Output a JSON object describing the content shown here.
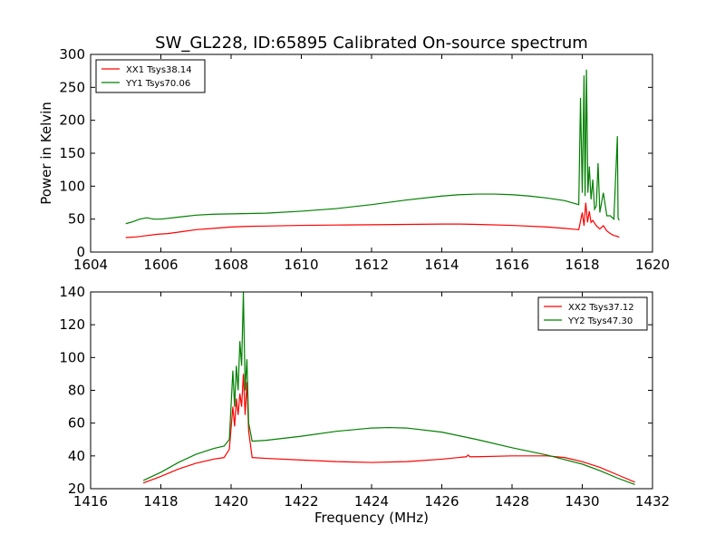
{
  "title": "SW_GL228, ID:65895 Calibrated On-source spectrum",
  "colors": {
    "red": "#ff0000",
    "green": "#008000"
  },
  "chart_data": [
    {
      "type": "line",
      "ylabel": "Power in Kelvin",
      "xlabel": "",
      "xlim": [
        1604,
        1620
      ],
      "ylim": [
        0,
        300
      ],
      "xticks": [
        "1604",
        "1606",
        "1608",
        "1610",
        "1612",
        "1614",
        "1616",
        "1618",
        "1620"
      ],
      "yticks": [
        "0",
        "50",
        "100",
        "150",
        "200",
        "250",
        "300"
      ],
      "legend": "top-left",
      "series": [
        {
          "name": "XX1 Tsys38.14",
          "color": "#ff0000",
          "x": [
            1605.0,
            1605.3,
            1605.6,
            1605.9,
            1606.2,
            1606.6,
            1607.0,
            1607.5,
            1608.0,
            1608.5,
            1609.0,
            1610.0,
            1611.0,
            1612.0,
            1613.0,
            1614.0,
            1614.5,
            1615.0,
            1616.0,
            1617.0,
            1617.5,
            1617.9,
            1618.0,
            1618.05,
            1618.1,
            1618.15,
            1618.2,
            1618.25,
            1618.3,
            1618.4,
            1618.5,
            1618.6,
            1618.7,
            1618.8,
            1618.9,
            1619.0,
            1619.05
          ],
          "y": [
            22,
            23,
            25,
            27,
            28,
            31,
            34,
            36,
            38,
            39,
            39.5,
            40.5,
            41,
            41.5,
            42,
            42.5,
            42.5,
            42,
            40.5,
            38,
            36,
            34,
            60,
            40,
            75,
            45,
            62,
            45,
            48,
            40,
            35,
            40,
            32,
            28,
            25,
            24,
            22
          ]
        },
        {
          "name": "YY1 Tsys70.06",
          "color": "#008000",
          "x": [
            1605.0,
            1605.2,
            1605.4,
            1605.6,
            1605.8,
            1606.0,
            1606.5,
            1607.0,
            1607.5,
            1608.0,
            1609.0,
            1610.0,
            1611.0,
            1612.0,
            1613.0,
            1614.0,
            1614.5,
            1615.0,
            1615.5,
            1616.0,
            1616.5,
            1617.0,
            1617.5,
            1617.9,
            1617.95,
            1618.0,
            1618.05,
            1618.08,
            1618.12,
            1618.16,
            1618.2,
            1618.25,
            1618.3,
            1618.35,
            1618.4,
            1618.45,
            1618.5,
            1618.6,
            1618.7,
            1618.8,
            1618.9,
            1619.0,
            1619.02,
            1619.05
          ],
          "y": [
            43,
            46,
            50,
            52,
            50,
            50,
            53,
            56,
            57.5,
            58,
            59,
            62,
            66,
            72,
            79,
            85,
            87,
            88,
            88,
            87,
            85,
            82,
            78,
            72,
            234,
            90,
            268,
            85,
            277,
            90,
            130,
            80,
            110,
            65,
            70,
            135,
            60,
            90,
            55,
            55,
            50,
            176,
            52,
            48
          ]
        }
      ]
    },
    {
      "type": "line",
      "xlabel": "Frequency (MHz)",
      "ylabel": "",
      "xlim": [
        1416,
        1432
      ],
      "ylim": [
        20,
        140
      ],
      "xticks": [
        "1416",
        "1418",
        "1420",
        "1422",
        "1424",
        "1426",
        "1428",
        "1430",
        "1432"
      ],
      "yticks": [
        "20",
        "40",
        "60",
        "80",
        "100",
        "120",
        "140"
      ],
      "legend": "top-right",
      "series": [
        {
          "name": "XX2 Tsys37.12",
          "color": "#ff0000",
          "x": [
            1417.5,
            1418.0,
            1418.5,
            1419.0,
            1419.5,
            1419.8,
            1419.95,
            1420.05,
            1420.1,
            1420.15,
            1420.2,
            1420.25,
            1420.3,
            1420.35,
            1420.4,
            1420.45,
            1420.5,
            1420.6,
            1421.0,
            1422.0,
            1423.0,
            1424.0,
            1425.0,
            1426.0,
            1426.7,
            1426.75,
            1426.8,
            1427.0,
            1428.0,
            1429.0,
            1429.5,
            1430.0,
            1430.5,
            1431.0,
            1431.5
          ],
          "y": [
            23.5,
            27.5,
            32,
            35.5,
            38,
            39,
            44,
            70,
            58,
            75,
            65,
            78,
            70,
            90,
            65,
            85,
            55,
            39,
            38.5,
            37.5,
            36.5,
            36,
            36.5,
            38,
            39.5,
            40.5,
            39.5,
            39.5,
            40,
            40,
            39,
            36.5,
            33,
            28.5,
            24
          ]
        },
        {
          "name": "YY2 Tsys47.30",
          "color": "#008000",
          "x": [
            1417.5,
            1418.0,
            1418.5,
            1419.0,
            1419.5,
            1419.8,
            1419.95,
            1420.05,
            1420.1,
            1420.15,
            1420.2,
            1420.25,
            1420.3,
            1420.35,
            1420.4,
            1420.45,
            1420.5,
            1420.6,
            1421.0,
            1422.0,
            1423.0,
            1424.0,
            1424.5,
            1425.0,
            1426.0,
            1427.0,
            1428.0,
            1429.0,
            1430.0,
            1430.5,
            1431.0,
            1431.5
          ],
          "y": [
            25,
            30,
            36,
            41,
            44.5,
            46,
            50,
            92,
            70,
            95,
            80,
            110,
            95,
            140,
            80,
            99,
            60,
            49,
            49.5,
            52,
            55,
            57,
            57.3,
            57,
            54.5,
            50,
            45,
            40.5,
            35,
            31,
            26.5,
            22.5
          ]
        }
      ]
    }
  ]
}
